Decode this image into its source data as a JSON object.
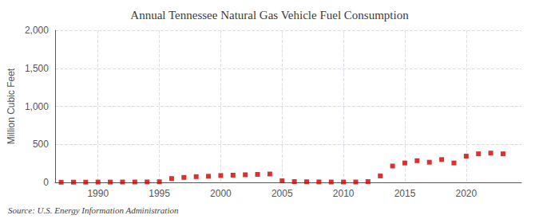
{
  "chart_data": {
    "type": "scatter",
    "title": "Annual Tennessee Natural Gas Vehicle Fuel Consumption",
    "ylabel": "Million Cubic Feet",
    "source": "Source: U.S. Energy Information Administration",
    "x": [
      1987,
      1988,
      1989,
      1990,
      1991,
      1992,
      1993,
      1994,
      1995,
      1996,
      1997,
      1998,
      1999,
      2000,
      2001,
      2002,
      2003,
      2004,
      2005,
      2006,
      2007,
      2008,
      2009,
      2010,
      2011,
      2012,
      2013,
      2014,
      2015,
      2016,
      2017,
      2018,
      2019,
      2020,
      2021,
      2022,
      2023
    ],
    "values": [
      2,
      3,
      3,
      4,
      4,
      5,
      5,
      6,
      8,
      50,
      65,
      75,
      80,
      90,
      95,
      100,
      105,
      110,
      20,
      10,
      8,
      6,
      5,
      5,
      5,
      10,
      85,
      215,
      255,
      285,
      265,
      300,
      255,
      345,
      375,
      385,
      375
    ],
    "color": "#cc0000",
    "marker": "square",
    "xlim": [
      1986.5,
      2024.5
    ],
    "xticks": [
      1990,
      1995,
      2000,
      2005,
      2010,
      2015,
      2020
    ],
    "ylim": [
      0,
      2000
    ],
    "yticks": [
      0,
      500,
      {
        "value": 1000,
        "label": "1,000"
      },
      {
        "value": 1500,
        "label": "1,500"
      },
      {
        "value": 2000,
        "label": "2,000"
      }
    ],
    "grid": true
  }
}
